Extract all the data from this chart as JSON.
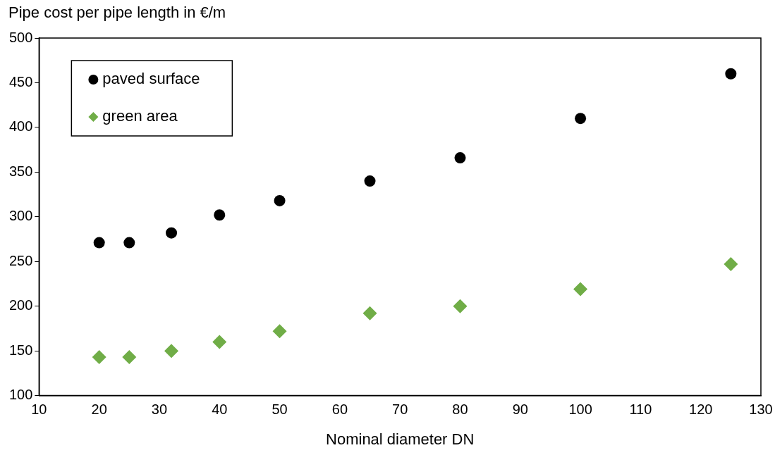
{
  "chart_data": {
    "type": "scatter",
    "ylabel": "Pipe cost per pipe length in €/m",
    "xlabel": "Nominal diameter DN",
    "x": [
      20,
      25,
      32,
      40,
      50,
      65,
      80,
      100,
      125
    ],
    "series": [
      {
        "name": "paved surface",
        "color": "#000000",
        "marker": "circle",
        "values": [
          271,
          271,
          282,
          302,
          318,
          340,
          366,
          410,
          460
        ]
      },
      {
        "name": "green area",
        "color": "#70ad47",
        "marker": "diamond",
        "values": [
          143,
          143,
          150,
          160,
          172,
          192,
          200,
          219,
          247
        ]
      }
    ],
    "xlim": [
      10,
      130
    ],
    "xticks": [
      10,
      20,
      30,
      40,
      50,
      60,
      70,
      80,
      90,
      100,
      110,
      120,
      130
    ],
    "ylim": [
      100,
      500
    ],
    "yticks": [
      100,
      150,
      200,
      250,
      300,
      350,
      400,
      450,
      500
    ],
    "grid": false,
    "legend": "top left"
  }
}
